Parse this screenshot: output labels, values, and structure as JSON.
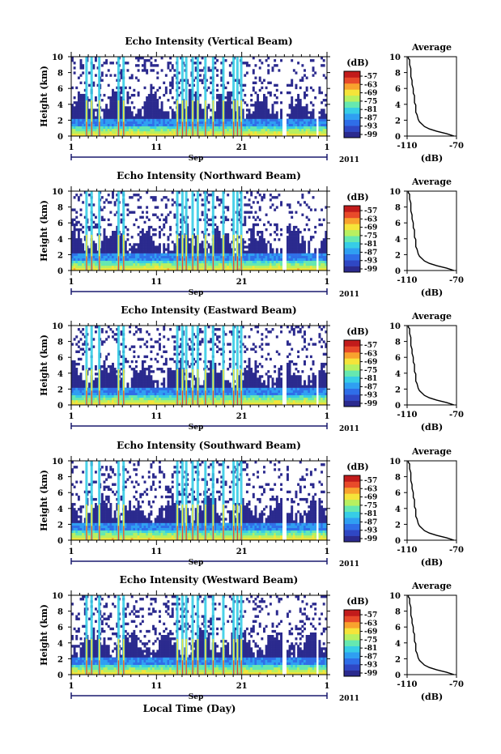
{
  "page": {
    "bottom_xlabel": "Local Time (Day)",
    "month_label": "Sep",
    "year_label": "2011"
  },
  "colorbar": {
    "unit": "(dB)",
    "ticks": [
      "-57",
      "-63",
      "-69",
      "-75",
      "-81",
      "-87",
      "-93",
      "-99"
    ],
    "colors": [
      "#2b2a8e",
      "#2f47c4",
      "#2f6ee8",
      "#2f9ff2",
      "#37cde6",
      "#66e8b0",
      "#b8f060",
      "#f5e43a",
      "#f8a22e",
      "#e84a2a",
      "#c21b1b"
    ]
  },
  "chart_data": [
    {
      "type": "heatmap",
      "title": "Echo Intensity (Vertical Beam)",
      "ylabel": "Height (km)",
      "ylim": [
        0,
        10
      ],
      "yticks": [
        "0",
        "2",
        "4",
        "6",
        "8",
        "10"
      ],
      "xticks": [
        "1",
        "11",
        "21",
        "1"
      ],
      "xlim_days": [
        1,
        31
      ],
      "value_range_db": [
        -99,
        -57
      ],
      "average_profile": {
        "title": "Average",
        "xlabel": "(dB)",
        "xticks": [
          "-110",
          "-70"
        ],
        "xlim": [
          -110,
          -70
        ],
        "yticks": [
          "0",
          "2",
          "4",
          "6",
          "8",
          "10"
        ],
        "ylim": [
          0,
          10
        ],
        "db": [
          -72,
          -78,
          -86,
          -92,
          -96,
          -98,
          -100,
          -101,
          -101.5,
          -102,
          -103,
          -103,
          -103,
          -103,
          -104,
          -104,
          -104,
          -104,
          -105,
          -105,
          -105,
          -106,
          -106,
          -107,
          -107,
          -107,
          -108,
          -108,
          -108,
          -109,
          -109
        ],
        "height_km": [
          0,
          0.3,
          0.6,
          0.9,
          1.2,
          1.5,
          1.8,
          2.1,
          2.4,
          2.7,
          3.0,
          3.3,
          3.6,
          3.9,
          4.2,
          4.5,
          4.8,
          5.1,
          5.4,
          5.7,
          6.0,
          6.5,
          7.0,
          7.5,
          8.0,
          8.5,
          9.0,
          9.3,
          9.6,
          9.8,
          10.0
        ]
      }
    },
    {
      "type": "heatmap",
      "title": "Echo Intensity (Northward Beam)",
      "ylabel": "Height (km)",
      "ylim": [
        0,
        10
      ],
      "yticks": [
        "0",
        "2",
        "4",
        "6",
        "8",
        "10"
      ],
      "xticks": [
        "1",
        "11",
        "21",
        "1"
      ],
      "xlim_days": [
        1,
        31
      ],
      "value_range_db": [
        -99,
        -57
      ],
      "average_profile": {
        "title": "Average",
        "xlabel": "(dB)",
        "xticks": [
          "-110",
          "-70"
        ],
        "xlim": [
          -110,
          -70
        ],
        "yticks": [
          "0",
          "2",
          "4",
          "6",
          "8",
          "10"
        ],
        "ylim": [
          0,
          10
        ],
        "db": [
          -72,
          -78,
          -86,
          -92,
          -96,
          -98,
          -100,
          -101,
          -101.5,
          -102,
          -103,
          -103,
          -103,
          -103,
          -104,
          -104,
          -104,
          -104,
          -105,
          -105,
          -105,
          -106,
          -106,
          -107,
          -107,
          -107,
          -108,
          -108,
          -108,
          -109,
          -109
        ],
        "height_km": [
          0,
          0.3,
          0.6,
          0.9,
          1.2,
          1.5,
          1.8,
          2.1,
          2.4,
          2.7,
          3.0,
          3.3,
          3.6,
          3.9,
          4.2,
          4.5,
          4.8,
          5.1,
          5.4,
          5.7,
          6.0,
          6.5,
          7.0,
          7.5,
          8.0,
          8.5,
          9.0,
          9.3,
          9.6,
          9.8,
          10.0
        ]
      }
    },
    {
      "type": "heatmap",
      "title": "Echo Intensity (Eastward Beam)",
      "ylabel": "Height (km)",
      "ylim": [
        0,
        10
      ],
      "yticks": [
        "0",
        "2",
        "4",
        "6",
        "8",
        "10"
      ],
      "xticks": [
        "1",
        "11",
        "21",
        "1"
      ],
      "xlim_days": [
        1,
        31
      ],
      "value_range_db": [
        -99,
        -57
      ],
      "average_profile": {
        "title": "Average",
        "xlabel": "(dB)",
        "xticks": [
          "-110",
          "-70"
        ],
        "xlim": [
          -110,
          -70
        ],
        "yticks": [
          "0",
          "2",
          "4",
          "6",
          "8",
          "10"
        ],
        "ylim": [
          0,
          10
        ],
        "db": [
          -72,
          -78,
          -86,
          -92,
          -96,
          -98,
          -100,
          -101,
          -101.5,
          -102,
          -103,
          -103,
          -103,
          -103,
          -104,
          -104,
          -104,
          -104,
          -105,
          -105,
          -105,
          -106,
          -106,
          -107,
          -107,
          -107,
          -108,
          -108,
          -108,
          -109,
          -109
        ],
        "height_km": [
          0,
          0.3,
          0.6,
          0.9,
          1.2,
          1.5,
          1.8,
          2.1,
          2.4,
          2.7,
          3.0,
          3.3,
          3.6,
          3.9,
          4.2,
          4.5,
          4.8,
          5.1,
          5.4,
          5.7,
          6.0,
          6.5,
          7.0,
          7.5,
          8.0,
          8.5,
          9.0,
          9.3,
          9.6,
          9.8,
          10.0
        ]
      }
    },
    {
      "type": "heatmap",
      "title": "Echo Intensity (Southward Beam)",
      "ylabel": "Height (km)",
      "ylim": [
        0,
        10
      ],
      "yticks": [
        "0",
        "2",
        "4",
        "6",
        "8",
        "10"
      ],
      "xticks": [
        "1",
        "11",
        "21",
        "1"
      ],
      "xlim_days": [
        1,
        31
      ],
      "value_range_db": [
        -99,
        -57
      ],
      "average_profile": {
        "title": "Average",
        "xlabel": "(dB)",
        "xticks": [
          "-110",
          "-70"
        ],
        "xlim": [
          -110,
          -70
        ],
        "yticks": [
          "0",
          "2",
          "4",
          "6",
          "8",
          "10"
        ],
        "ylim": [
          0,
          10
        ],
        "db": [
          -72,
          -78,
          -86,
          -92,
          -96,
          -98,
          -100,
          -101,
          -101.5,
          -102,
          -103,
          -103,
          -103,
          -103,
          -104,
          -104,
          -104,
          -104,
          -105,
          -105,
          -105,
          -106,
          -106,
          -107,
          -107,
          -107,
          -108,
          -108,
          -108,
          -109,
          -109
        ],
        "height_km": [
          0,
          0.3,
          0.6,
          0.9,
          1.2,
          1.5,
          1.8,
          2.1,
          2.4,
          2.7,
          3.0,
          3.3,
          3.6,
          3.9,
          4.2,
          4.5,
          4.8,
          5.1,
          5.4,
          5.7,
          6.0,
          6.5,
          7.0,
          7.5,
          8.0,
          8.5,
          9.0,
          9.3,
          9.6,
          9.8,
          10.0
        ]
      }
    },
    {
      "type": "heatmap",
      "title": "Echo Intensity (Westward Beam)",
      "ylabel": "Height (km)",
      "ylim": [
        0,
        10
      ],
      "yticks": [
        "0",
        "2",
        "4",
        "6",
        "8",
        "10"
      ],
      "xticks": [
        "1",
        "11",
        "21",
        "1"
      ],
      "xlim_days": [
        1,
        31
      ],
      "value_range_db": [
        -99,
        -57
      ],
      "average_profile": {
        "title": "Average",
        "xlabel": "(dB)",
        "xticks": [
          "-110",
          "-70"
        ],
        "xlim": [
          -110,
          -70
        ],
        "yticks": [
          "0",
          "2",
          "4",
          "6",
          "8",
          "10"
        ],
        "ylim": [
          0,
          10
        ],
        "db": [
          -72,
          -78,
          -86,
          -92,
          -96,
          -98,
          -100,
          -101,
          -101.5,
          -102,
          -103,
          -103,
          -103,
          -103,
          -104,
          -104,
          -104,
          -104,
          -105,
          -105,
          -105,
          -106,
          -106,
          -107,
          -107,
          -107,
          -108,
          -108,
          -108,
          -109,
          -109
        ],
        "height_km": [
          0,
          0.3,
          0.6,
          0.9,
          1.2,
          1.5,
          1.8,
          2.1,
          2.4,
          2.7,
          3.0,
          3.3,
          3.6,
          3.9,
          4.2,
          4.5,
          4.8,
          5.1,
          5.4,
          5.7,
          6.0,
          6.5,
          7.0,
          7.5,
          8.0,
          8.5,
          9.0,
          9.3,
          9.6,
          9.8,
          10.0
        ]
      }
    }
  ]
}
